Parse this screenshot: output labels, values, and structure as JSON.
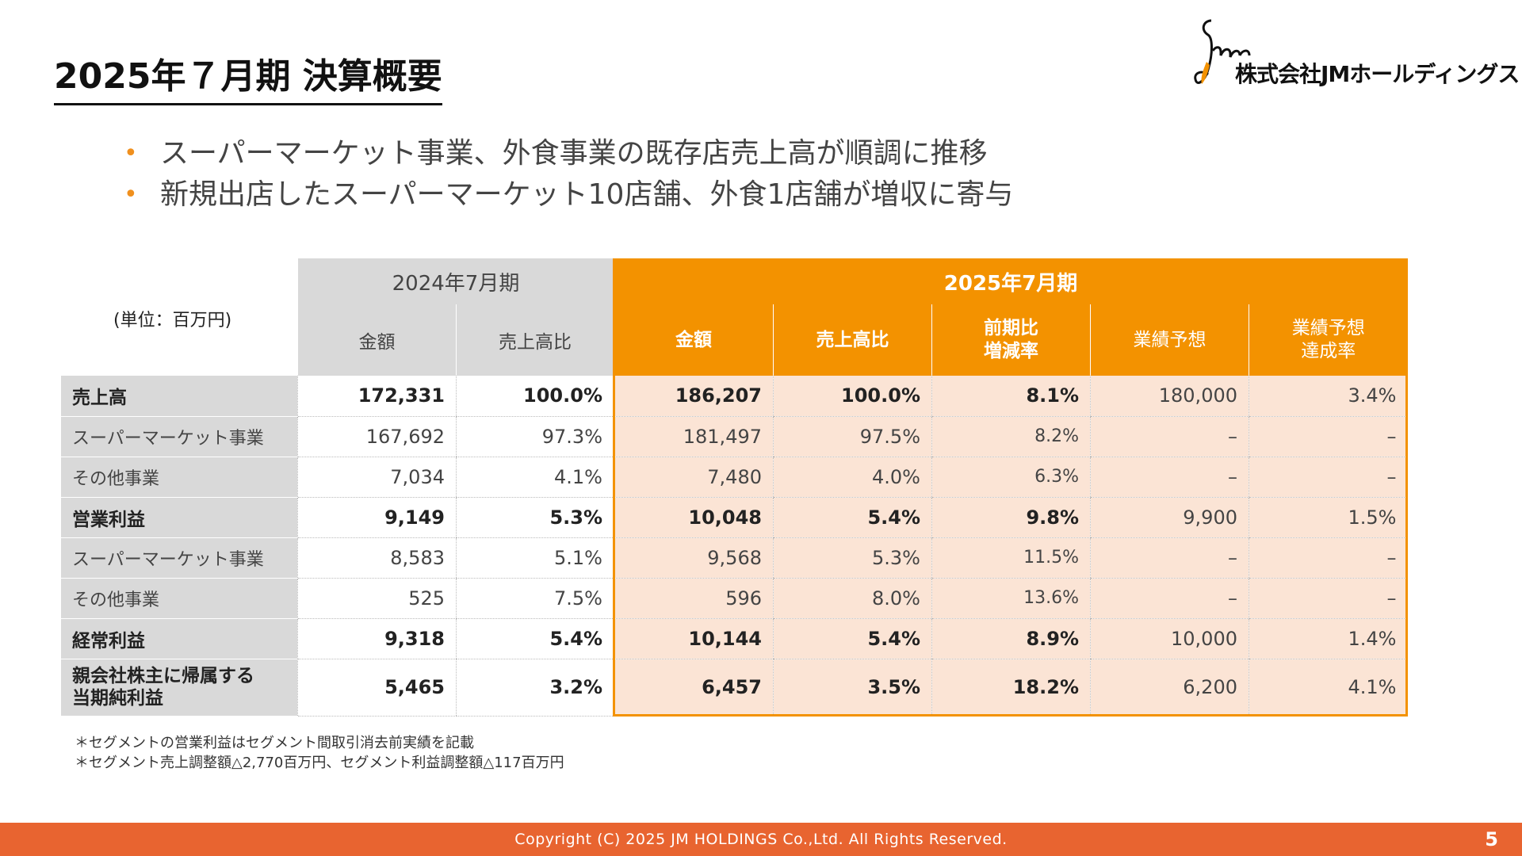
{
  "title": "2025年７月期 決算概要",
  "company": "株式会社JMホールディングス",
  "bullets": [
    "スーパーマーケット事業、外食事業の既存店売上高が順調に推移",
    "新規出店したスーパーマーケット10店舗、外食1店舗が増収に寄与"
  ],
  "table": {
    "unit": "(単位：百万円)",
    "prev_period": "2024年7月期",
    "curr_period": "2025年7月期",
    "prev_columns": [
      "金額",
      "売上高比"
    ],
    "curr_columns": [
      "金額",
      "売上高比",
      "前期比\n増減率",
      "業績予想",
      "業績予想\n達成率"
    ],
    "rows": [
      {
        "label": "売上高",
        "prev_amount": "172,331",
        "prev_ratio": "100.0%",
        "curr_amount": "186,207",
        "curr_ratio": "100.0%",
        "yoy": "8.1%",
        "forecast": "180,000",
        "achievement": "3.4%"
      },
      {
        "label": "スーパーマーケット事業",
        "prev_amount": "167,692",
        "prev_ratio": "97.3%",
        "curr_amount": "181,497",
        "curr_ratio": "97.5%",
        "yoy": "8.2%",
        "forecast": "–",
        "achievement": "–"
      },
      {
        "label": "その他事業",
        "prev_amount": "7,034",
        "prev_ratio": "4.1%",
        "curr_amount": "7,480",
        "curr_ratio": "4.0%",
        "yoy": "6.3%",
        "forecast": "–",
        "achievement": "–"
      },
      {
        "label": "営業利益",
        "prev_amount": "9,149",
        "prev_ratio": "5.3%",
        "curr_amount": "10,048",
        "curr_ratio": "5.4%",
        "yoy": "9.8%",
        "forecast": "9,900",
        "achievement": "1.5%"
      },
      {
        "label": "スーパーマーケット事業",
        "prev_amount": "8,583",
        "prev_ratio": "5.1%",
        "curr_amount": "9,568",
        "curr_ratio": "5.3%",
        "yoy": "11.5%",
        "forecast": "–",
        "achievement": "–"
      },
      {
        "label": "その他事業",
        "prev_amount": "525",
        "prev_ratio": "7.5%",
        "curr_amount": "596",
        "curr_ratio": "8.0%",
        "yoy": "13.6%",
        "forecast": "–",
        "achievement": "–"
      },
      {
        "label": "経常利益",
        "prev_amount": "9,318",
        "prev_ratio": "5.4%",
        "curr_amount": "10,144",
        "curr_ratio": "5.4%",
        "yoy": "8.9%",
        "forecast": "10,000",
        "achievement": "1.4%"
      },
      {
        "label": "親会社株主に帰属する\n当期純利益",
        "prev_amount": "5,465",
        "prev_ratio": "3.2%",
        "curr_amount": "6,457",
        "curr_ratio": "3.5%",
        "yoy": "18.2%",
        "forecast": "6,200",
        "achievement": "4.1%"
      }
    ]
  },
  "notes": [
    "＊セグメントの営業利益はセグメント間取引消去前実績を記載",
    "＊セグメント売上調整額△2,770百万円、セグメント利益調整額△117百万円"
  ],
  "footer": {
    "copyright": "Copyright (C) 2025 JM HOLDINGS Co.,Ltd. All Rights Reserved.",
    "page": "5"
  },
  "colors": {
    "accent_orange": "#f39200",
    "footer_orange": "#e86430",
    "header_gray": "#d9d9d9",
    "highlight_peach": "#fbe4d5"
  }
}
